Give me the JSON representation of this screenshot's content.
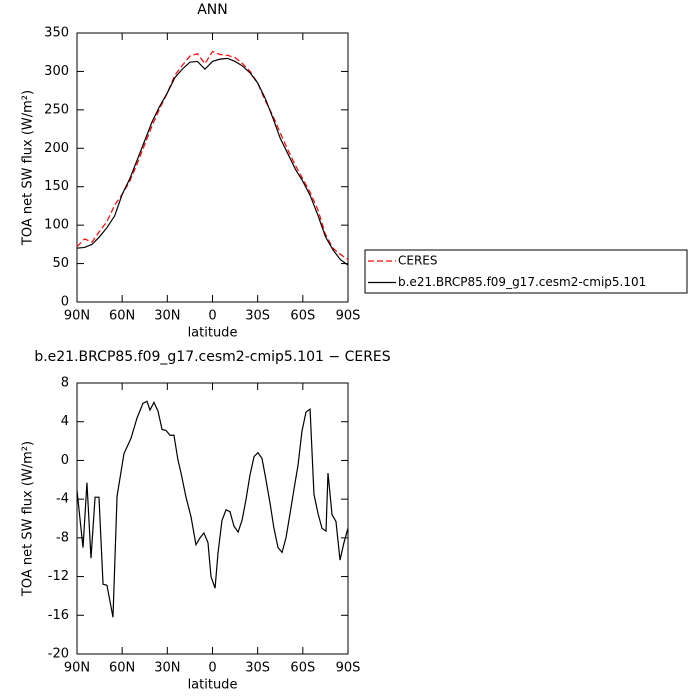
{
  "chart_data": [
    {
      "type": "line",
      "title": "ANN",
      "xlabel": "latitude",
      "ylabel": "TOA net SW flux (W/m²)",
      "x": [
        90,
        85,
        80,
        75,
        70,
        65,
        60,
        55,
        50,
        45,
        40,
        35,
        30,
        25,
        20,
        15,
        10,
        5,
        0,
        -5,
        -10,
        -15,
        -20,
        -25,
        -30,
        -35,
        -40,
        -45,
        -50,
        -55,
        -60,
        -65,
        -70,
        -75,
        -80,
        -85,
        -90
      ],
      "series": [
        {
          "name": "CERES",
          "color": "#ff0000",
          "dashed": true,
          "values": [
            72,
            82,
            78,
            92,
            105,
            126,
            140,
            157,
            180,
            205,
            230,
            252,
            272,
            295,
            308,
            320,
            323,
            310,
            326,
            322,
            321,
            318,
            310,
            300,
            285,
            262,
            243,
            220,
            198,
            178,
            160,
            142,
            120,
            88,
            70,
            62,
            55
          ]
        },
        {
          "name": "b.e21.BRCP85.f09_g17.cesm2-cmip5.101",
          "color": "#000000",
          "dashed": false,
          "values": [
            70,
            71,
            75,
            85,
            97,
            112,
            140,
            160,
            185,
            210,
            235,
            255,
            272,
            292,
            303,
            312,
            313,
            303,
            313,
            316,
            317,
            313,
            307,
            298,
            285,
            265,
            240,
            213,
            193,
            173,
            157,
            138,
            113,
            85,
            68,
            55,
            48
          ]
        }
      ],
      "xlim": [
        90,
        -90
      ],
      "ylim": [
        0,
        350
      ],
      "xticks": [
        {
          "value": 90,
          "label": "90N"
        },
        {
          "value": 60,
          "label": "60N"
        },
        {
          "value": 30,
          "label": "30N"
        },
        0,
        {
          "value": -30,
          "label": "30S"
        },
        {
          "value": -60,
          "label": "60S"
        },
        {
          "value": -90,
          "label": "90S"
        }
      ],
      "yticks": [
        0,
        50,
        100,
        150,
        200,
        250,
        300,
        350
      ],
      "legend": "outside-right"
    },
    {
      "type": "line",
      "title": "b.e21.BRCP85.f09_g17.cesm2-cmip5.101 − CERES",
      "xlabel": "latitude",
      "ylabel": "TOA net SW flux (W/m²)",
      "x": [
        90,
        86.0,
        83.4,
        80.7,
        78.0,
        75.4,
        72.7,
        70.1,
        66.1,
        63.4,
        58.8,
        54.1,
        50.1,
        46.2,
        43.5,
        41.5,
        38.9,
        36.2,
        33.5,
        30.9,
        28.2,
        25.6,
        22.9,
        20.9,
        17.6,
        14.3,
        11.0,
        8.3,
        5.7,
        3.0,
        1.0,
        -1.7,
        -3.7,
        -6.3,
        -9.0,
        -11.6,
        -14.3,
        -17.0,
        -19.6,
        -22.3,
        -24.9,
        -27.6,
        -30.2,
        -32.9,
        -35.5,
        -38.2,
        -40.8,
        -43.5,
        -46.2,
        -48.8,
        -51.5,
        -54.1,
        -56.8,
        -59.4,
        -62.1,
        -64.8,
        -67.4,
        -70.1,
        -72.7,
        -75.4,
        -76.7,
        -79.4,
        -82.0,
        -84.7,
        -87.3,
        -90
      ],
      "series": [
        {
          "color": "#000000",
          "values": [
            -3.1,
            -9.0,
            -2.3,
            -10.1,
            -3.8,
            -3.8,
            -12.8,
            -12.9,
            -16.2,
            -3.7,
            0.7,
            2.3,
            4.4,
            5.9,
            6.1,
            5.2,
            6.0,
            5.1,
            3.2,
            3.1,
            2.6,
            2.6,
            0,
            -1.3,
            -3.8,
            -5.8,
            -8.7,
            -8.0,
            -7.5,
            -8.5,
            -12.0,
            -13.2,
            -9.5,
            -6.2,
            -5.1,
            -5.3,
            -6.8,
            -7.4,
            -6.2,
            -4.0,
            -1.5,
            0.4,
            0.8,
            0.2,
            -2.0,
            -4.4,
            -7.0,
            -9.0,
            -9.5,
            -8.0,
            -5.5,
            -3.0,
            -0.5,
            3.0,
            5.0,
            5.3,
            -3.5,
            -5.5,
            -7.0,
            -7.3,
            -1.3,
            -5.6,
            -6.3,
            -10.3,
            -8.5,
            -7.0
          ]
        }
      ],
      "xlim": [
        90,
        -90
      ],
      "ylim": [
        -20,
        8
      ],
      "xticks": [
        {
          "value": 90,
          "label": "90N"
        },
        {
          "value": 60,
          "label": "60N"
        },
        {
          "value": 30,
          "label": "30N"
        },
        0,
        {
          "value": -30,
          "label": "30S"
        },
        {
          "value": -60,
          "label": "60S"
        },
        {
          "value": -90,
          "label": "90S"
        }
      ],
      "yticks": [
        -20,
        -16,
        -12,
        -8,
        -4,
        0,
        4,
        8
      ]
    }
  ]
}
